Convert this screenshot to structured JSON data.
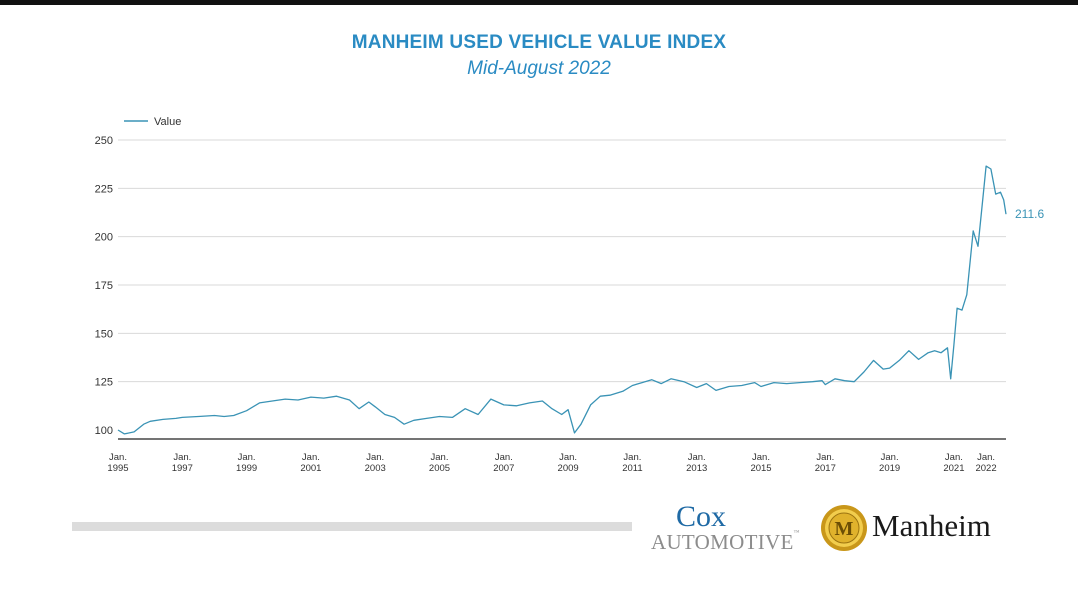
{
  "header": {
    "title": "MANHEIM USED VEHICLE VALUE INDEX",
    "subtitle": "Mid-August 2022"
  },
  "colors": {
    "title": "#2a8bc3",
    "series": "#3a93b5",
    "grid": "#d9d9d9",
    "axis": "#222222",
    "text": "#333333",
    "footer_bar": "#dcdcdc",
    "cox_blue": "#1f6aa5",
    "manheim_gold": "#d4a81f"
  },
  "logos": {
    "cox_line1": "Cox",
    "cox_line2": "AUTOMOTIVE",
    "cox_tm": "™",
    "manheim": "Manheim",
    "manheim_seal_letter": "M"
  },
  "chart_data": {
    "type": "line",
    "title": "MANHEIM USED VEHICLE VALUE INDEX",
    "subtitle": "Mid-August 2022",
    "xlabel": "",
    "ylabel": "",
    "ylim": [
      100,
      250
    ],
    "xlim": [
      1995.0,
      2022.62
    ],
    "yticks": [
      100,
      125,
      150,
      175,
      200,
      225,
      250
    ],
    "xticks": [
      {
        "value": 1995,
        "label": [
          "Jan.",
          "1995"
        ]
      },
      {
        "value": 1997,
        "label": [
          "Jan.",
          "1997"
        ]
      },
      {
        "value": 1999,
        "label": [
          "Jan.",
          "1999"
        ]
      },
      {
        "value": 2001,
        "label": [
          "Jan.",
          "2001"
        ]
      },
      {
        "value": 2003,
        "label": [
          "Jan.",
          "2003"
        ]
      },
      {
        "value": 2005,
        "label": [
          "Jan.",
          "2005"
        ]
      },
      {
        "value": 2007,
        "label": [
          "Jan.",
          "2007"
        ]
      },
      {
        "value": 2009,
        "label": [
          "Jan.",
          "2009"
        ]
      },
      {
        "value": 2011,
        "label": [
          "Jan.",
          "2011"
        ]
      },
      {
        "value": 2013,
        "label": [
          "Jan.",
          "2013"
        ]
      },
      {
        "value": 2015,
        "label": [
          "Jan.",
          "2015"
        ]
      },
      {
        "value": 2017,
        "label": [
          "Jan.",
          "2017"
        ]
      },
      {
        "value": 2019,
        "label": [
          "Jan.",
          "2019"
        ]
      },
      {
        "value": 2021,
        "label": [
          "Jan.",
          "2021"
        ]
      },
      {
        "value": 2022,
        "label": [
          "Jan.",
          "2022"
        ]
      }
    ],
    "grid": true,
    "legend": {
      "position": "top-left"
    },
    "end_label": "211.6",
    "series": [
      {
        "name": "Value",
        "x": [
          1995.0,
          1995.2,
          1995.5,
          1995.8,
          1996.0,
          1996.4,
          1996.8,
          1997.0,
          1997.5,
          1998.0,
          1998.3,
          1998.6,
          1999.0,
          1999.4,
          1999.8,
          2000.2,
          2000.6,
          2001.0,
          2001.4,
          2001.8,
          2002.2,
          2002.5,
          2002.8,
          2003.0,
          2003.3,
          2003.6,
          2003.9,
          2004.2,
          2004.6,
          2005.0,
          2005.4,
          2005.8,
          2006.2,
          2006.6,
          2007.0,
          2007.4,
          2007.8,
          2008.2,
          2008.5,
          2008.8,
          2009.0,
          2009.2,
          2009.4,
          2009.7,
          2010.0,
          2010.3,
          2010.7,
          2011.0,
          2011.3,
          2011.6,
          2011.9,
          2012.2,
          2012.6,
          2013.0,
          2013.3,
          2013.6,
          2014.0,
          2014.4,
          2014.8,
          2015.0,
          2015.4,
          2015.8,
          2016.2,
          2016.6,
          2016.9,
          2017.0,
          2017.3,
          2017.6,
          2017.9,
          2018.2,
          2018.5,
          2018.8,
          2019.0,
          2019.3,
          2019.6,
          2019.9,
          2020.2,
          2020.4,
          2020.6,
          2020.8,
          2020.9,
          2021.0,
          2021.1,
          2021.25,
          2021.4,
          2021.6,
          2021.75,
          2021.9,
          2022.0,
          2022.15,
          2022.3,
          2022.45,
          2022.55,
          2022.62
        ],
        "y": [
          100.0,
          98.0,
          99.0,
          103.0,
          104.5,
          105.5,
          106.0,
          106.5,
          107.0,
          107.5,
          107.0,
          107.5,
          110.0,
          114.0,
          115.0,
          116.0,
          115.5,
          117.0,
          116.5,
          117.5,
          115.5,
          111.0,
          114.5,
          112.0,
          108.0,
          106.5,
          103.0,
          105.0,
          106.0,
          107.0,
          106.5,
          111.0,
          108.0,
          116.0,
          113.0,
          112.5,
          114.0,
          115.0,
          111.0,
          108.0,
          110.5,
          98.5,
          103.0,
          113.0,
          117.5,
          118.0,
          120.0,
          123.0,
          124.5,
          126.0,
          124.0,
          126.5,
          125.0,
          122.0,
          124.0,
          120.5,
          122.5,
          123.0,
          124.5,
          122.5,
          124.5,
          124.0,
          124.5,
          125.0,
          125.5,
          123.5,
          126.5,
          125.5,
          125.0,
          130.0,
          136.0,
          131.5,
          132.0,
          136.0,
          141.0,
          136.5,
          140.0,
          141.0,
          140.0,
          142.5,
          126.5,
          144.0,
          163.0,
          162.0,
          170.0,
          203.0,
          195.0,
          220.0,
          236.5,
          235.0,
          222.0,
          223.0,
          219.0,
          211.6
        ]
      }
    ]
  }
}
